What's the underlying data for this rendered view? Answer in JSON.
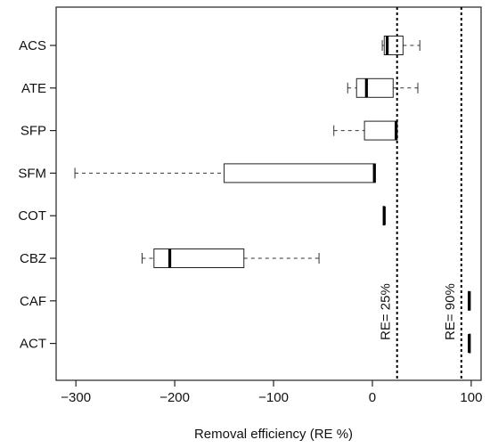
{
  "chart_data": {
    "type": "boxplot",
    "orientation": "horizontal",
    "xlabel": "Removal efficiency (RE %)",
    "xlim": [
      -320,
      110
    ],
    "xticks": [
      -300,
      -200,
      -100,
      0,
      100
    ],
    "xtick_labels": [
      "−300",
      "−200",
      "−100",
      "0",
      "100"
    ],
    "categories": [
      "ACS",
      "ATE",
      "SFP",
      "SFM",
      "COT",
      "CBZ",
      "CAF",
      "ACT"
    ],
    "boxes": [
      {
        "name": "ACS",
        "whisker_low": 10,
        "q1": 12,
        "median": 15,
        "q3": 31,
        "whisker_high": 48
      },
      {
        "name": "ATE",
        "whisker_low": -25,
        "q1": -16,
        "median": -6,
        "q3": 21,
        "whisker_high": 46
      },
      {
        "name": "SFP",
        "whisker_low": -39,
        "q1": -8,
        "median": 24,
        "q3": 25,
        "whisker_high": 25
      },
      {
        "name": "SFM",
        "whisker_low": -301,
        "q1": -150,
        "median": 2,
        "q3": 3,
        "whisker_high": 3
      },
      {
        "name": "COT",
        "whisker_low": 11,
        "q1": 11,
        "median": 12,
        "q3": 12,
        "whisker_high": 12
      },
      {
        "name": "CBZ",
        "whisker_low": -233,
        "q1": -221,
        "median": -205,
        "q3": -130,
        "whisker_high": -54
      },
      {
        "name": "CAF",
        "whisker_low": 97,
        "q1": 97,
        "median": 98,
        "q3": 99,
        "whisker_high": 99
      },
      {
        "name": "ACT",
        "whisker_low": 98,
        "q1": 98,
        "median": 98,
        "q3": 99,
        "whisker_high": 99
      }
    ],
    "reference_lines": [
      {
        "x": 25,
        "label": "RE= 25%"
      },
      {
        "x": 90,
        "label": "RE= 90%"
      }
    ],
    "grid": false,
    "legend": "none"
  }
}
